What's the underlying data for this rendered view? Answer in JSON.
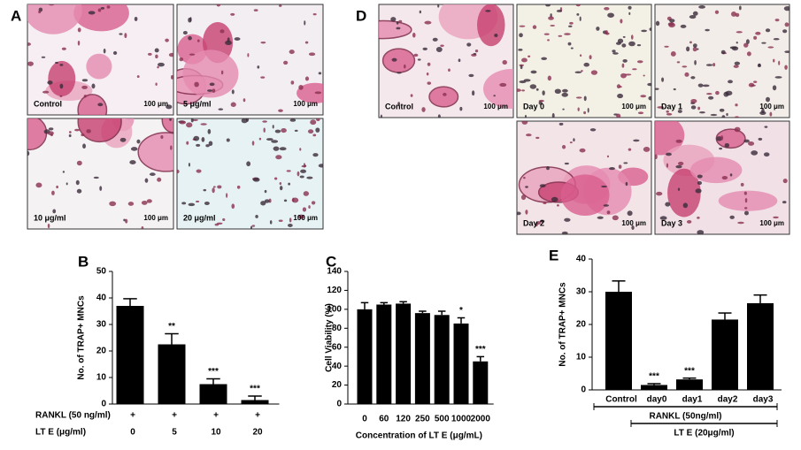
{
  "panels": [
    {
      "letter": "A",
      "images": [
        {
          "caption": "Control",
          "scale": "100 μm"
        },
        {
          "caption": "5 μg/ml",
          "scale": "100 μm"
        },
        {
          "caption": "10 μg/ml",
          "scale": "100 μm"
        },
        {
          "caption": "20 μg/ml",
          "scale": "100 μm"
        }
      ]
    },
    {
      "letter": "D",
      "images": [
        {
          "caption": "Control",
          "scale": "100 μm"
        },
        {
          "caption": "Day 0",
          "scale": "100 μm"
        },
        {
          "caption": "Day 1",
          "scale": "100 μm"
        },
        {
          "caption": "Day 2",
          "scale": "100 μm"
        },
        {
          "caption": "Day 3",
          "scale": "100 μm"
        }
      ]
    }
  ],
  "chart_data": [
    {
      "type": "bar",
      "letter": "B",
      "y_label": "No. of TRAP+ MNCs",
      "x_label": "LT E (μg/ml)",
      "categories": [
        "0",
        "5",
        "10",
        "20"
      ],
      "values": [
        37,
        22.5,
        7.5,
        1.5
      ],
      "errors": [
        2.7,
        4,
        2,
        1.5
      ],
      "significance": [
        null,
        "**",
        "***",
        "***"
      ],
      "rows": [
        {
          "label": "RANKL (50 ng/ml)",
          "values": [
            "+",
            "+",
            "+",
            "+"
          ]
        }
      ],
      "color": "#000000",
      "ylim": [
        0,
        50
      ],
      "yticks": [
        0,
        10,
        20,
        30,
        40,
        50
      ]
    },
    {
      "type": "bar",
      "letter": "C",
      "y_label": "Cell Viability (%)",
      "x_label": "Concentration of LT E (μg/mL)",
      "categories": [
        "0",
        "60",
        "120",
        "250",
        "500",
        "1000",
        "2000"
      ],
      "values": [
        100,
        105,
        106,
        96,
        94,
        85,
        45
      ],
      "errors": [
        7,
        2,
        2,
        2,
        4,
        6,
        5
      ],
      "significance": [
        null,
        null,
        null,
        null,
        null,
        "*",
        "***"
      ],
      "color": "#000000",
      "ylim": [
        0,
        140
      ],
      "yticks": [
        0,
        20,
        40,
        60,
        80,
        100,
        120,
        140
      ]
    },
    {
      "type": "bar",
      "letter": "E",
      "y_label": "No. of TRAP+ MNCs",
      "categories": [
        "Control",
        "day0",
        "day1",
        "day2",
        "day3"
      ],
      "values": [
        30,
        1.5,
        3.2,
        21.5,
        26.5
      ],
      "errors": [
        3.3,
        0.4,
        0.4,
        2,
        2.5
      ],
      "significance": [
        null,
        "***",
        "***",
        null,
        null
      ],
      "bracket_labels": [
        "RANKL (50ng/ml)",
        "LT E (20μg/ml)"
      ],
      "color": "#000000",
      "ylim": [
        0,
        40
      ],
      "yticks": [
        0,
        10,
        20,
        30,
        40
      ]
    }
  ]
}
